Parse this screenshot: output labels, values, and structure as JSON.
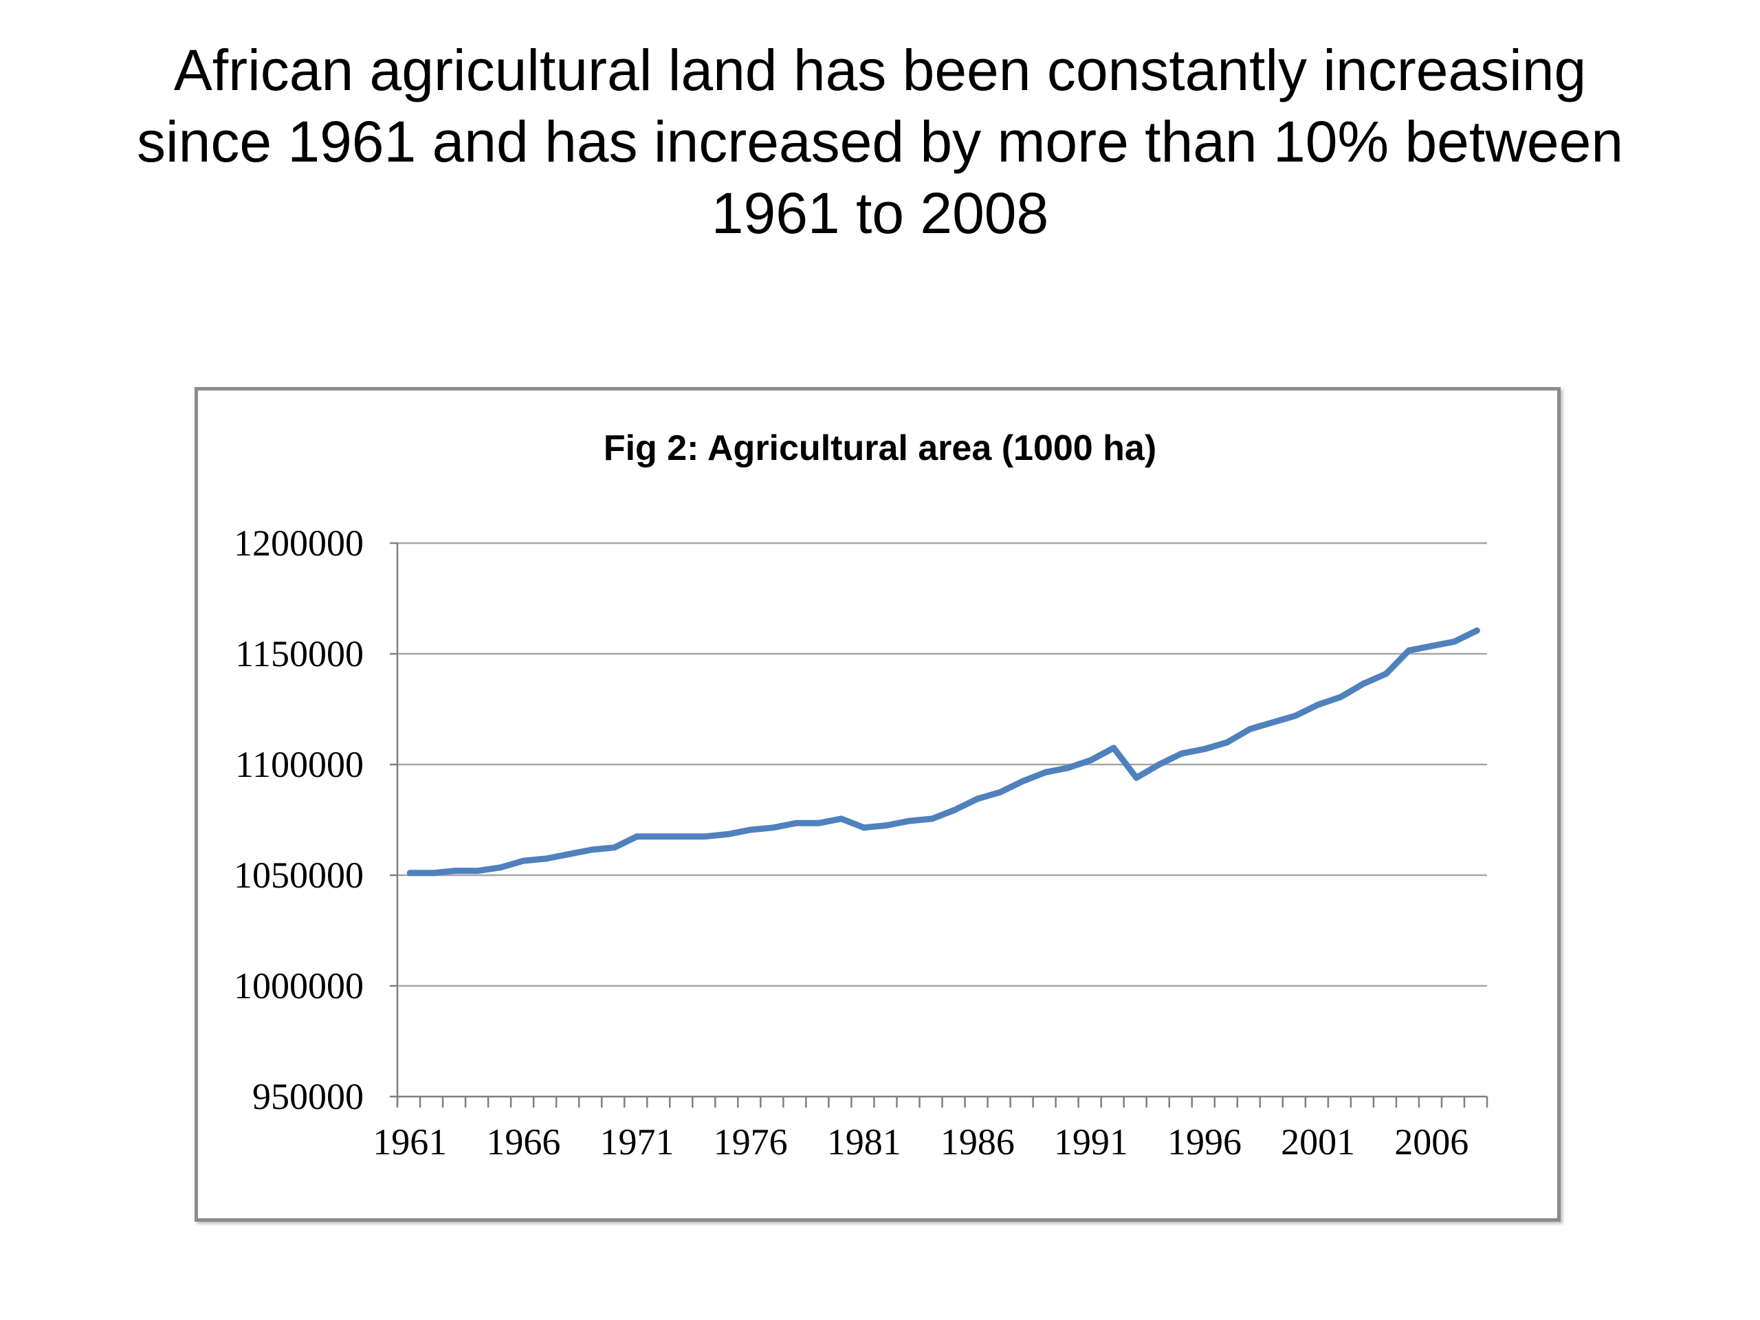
{
  "heading": {
    "lines": [
      "African agricultural land has been constantly increasing",
      "since 1961 and has increased by more than 10% between",
      "1961 to 2008"
    ]
  },
  "colors": {
    "line": "#4f81bd",
    "grid": "#a6a6a6",
    "axis": "#7f7f7f",
    "frame": "#8c8c8c"
  },
  "chart_data": {
    "type": "line",
    "title": "Fig 2: Agricultural area (1000 ha)",
    "xlabel": "",
    "ylabel": "",
    "ylim": [
      950000,
      1200000
    ],
    "yticks": [
      950000,
      1000000,
      1050000,
      1100000,
      1150000,
      1200000
    ],
    "ytick_labels": [
      "950000",
      "1000000",
      "1050000",
      "1100000",
      "1150000",
      "1200000"
    ],
    "xtick_labels": [
      "1961",
      "1966",
      "1971",
      "1976",
      "1981",
      "1986",
      "1991",
      "1996",
      "2001",
      "2006"
    ],
    "grid": true,
    "legend": false,
    "x": [
      1961,
      1962,
      1963,
      1964,
      1965,
      1966,
      1967,
      1968,
      1969,
      1970,
      1971,
      1972,
      1973,
      1974,
      1975,
      1976,
      1977,
      1978,
      1979,
      1980,
      1981,
      1982,
      1983,
      1984,
      1985,
      1986,
      1987,
      1988,
      1989,
      1990,
      1991,
      1992,
      1993,
      1994,
      1995,
      1996,
      1997,
      1998,
      1999,
      2000,
      2001,
      2002,
      2003,
      2004,
      2005,
      2006,
      2007,
      2008
    ],
    "series": [
      {
        "values": [
          1051000,
          1051000,
          1052000,
          1052000,
          1053500,
          1056500,
          1057500,
          1059500,
          1061500,
          1062500,
          1067500,
          1067500,
          1067500,
          1067500,
          1068500,
          1070500,
          1071500,
          1073500,
          1073500,
          1075500,
          1071500,
          1072500,
          1074500,
          1075500,
          1079500,
          1084500,
          1087500,
          1092500,
          1096500,
          1098500,
          1102000,
          1107500,
          1094000,
          1100000,
          1105000,
          1107000,
          1110000,
          1116000,
          1119000,
          1122000,
          1127000,
          1130500,
          1136500,
          1141000,
          1151500,
          1153500,
          1155500,
          1160500
        ]
      }
    ]
  }
}
